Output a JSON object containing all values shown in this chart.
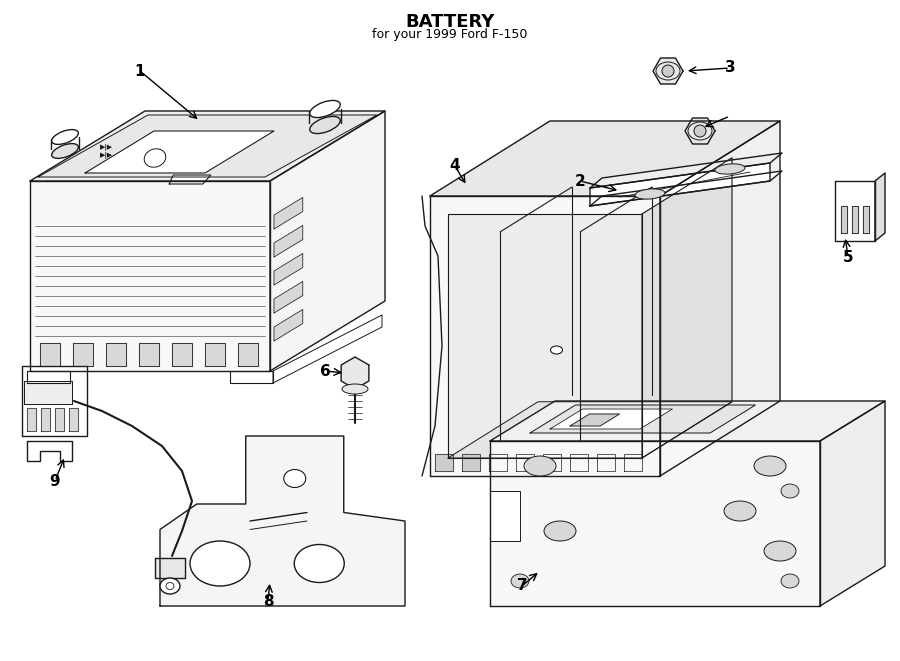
{
  "title": "BATTERY",
  "subtitle": "for your 1999 Ford F-150",
  "bg": "#ffffff",
  "lc": "#1a1a1a",
  "fig_w": 9.0,
  "fig_h": 6.61,
  "dpi": 100
}
